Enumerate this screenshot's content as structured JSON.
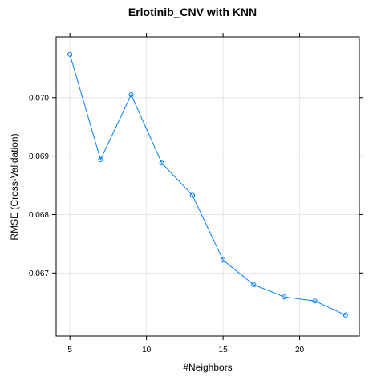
{
  "chart_data": {
    "type": "line",
    "title": "Erlotinib_CNV with KNN",
    "xlabel": "#Neighbors",
    "ylabel": "RMSE (Cross-Validation)",
    "x": [
      5,
      7,
      9,
      11,
      13,
      15,
      17,
      19,
      21,
      23
    ],
    "series": [
      {
        "values": [
          0.07074,
          0.06894,
          0.07005,
          0.06888,
          0.06833,
          0.06722,
          0.0668,
          0.06659,
          0.06652,
          0.06628
        ],
        "color": "#0080ff"
      }
    ],
    "xlim": [
      4.1,
      23.9
    ],
    "ylim": [
      0.06592,
      0.07104
    ],
    "xticks": [
      5,
      10,
      15,
      20
    ],
    "xtick_labels": [
      "5",
      "10",
      "15",
      "20"
    ],
    "yticks": [
      0.067,
      0.068,
      0.069,
      0.07
    ],
    "ytick_labels": [
      "0.067",
      "0.068",
      "0.069",
      "0.070"
    ],
    "grid": true,
    "grid_color": "#e6e6e6",
    "frame_color": "#000000",
    "marker": "open-circle"
  }
}
